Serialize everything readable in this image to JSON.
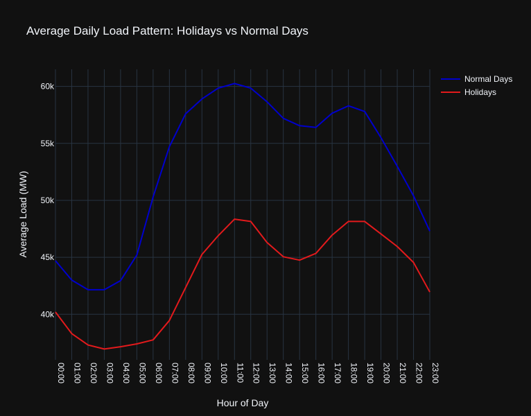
{
  "chart_data": {
    "type": "line",
    "title": "Average Daily Load Pattern: Holidays vs Normal Days",
    "xlabel": "Hour of Day",
    "ylabel": "Average Load (MW)",
    "categories": [
      "00:00",
      "01:00",
      "02:00",
      "03:00",
      "04:00",
      "05:00",
      "06:00",
      "07:00",
      "08:00",
      "09:00",
      "10:00",
      "11:00",
      "12:00",
      "13:00",
      "14:00",
      "15:00",
      "16:00",
      "17:00",
      "18:00",
      "19:00",
      "20:00",
      "21:00",
      "22:00",
      "23:00"
    ],
    "ylim": [
      36000,
      61500
    ],
    "yticks": [
      40000,
      45000,
      50000,
      55000,
      60000
    ],
    "ytick_labels": [
      "40k",
      "45k",
      "50k",
      "55k",
      "60k"
    ],
    "grid": true,
    "legend_position": "top-right",
    "series": [
      {
        "name": "Normal Days",
        "color": "#0000cd",
        "values": [
          44700,
          43000,
          42150,
          42150,
          42950,
          45200,
          50300,
          54700,
          57600,
          58900,
          59850,
          60250,
          59850,
          58650,
          57200,
          56550,
          56400,
          57650,
          58300,
          57800,
          55500,
          53000,
          50400,
          47300
        ]
      },
      {
        "name": "Holidays",
        "color": "#e31a1c",
        "values": [
          40200,
          38300,
          37300,
          36950,
          37150,
          37400,
          37750,
          39450,
          42350,
          45250,
          46900,
          48350,
          48150,
          46300,
          45050,
          44750,
          45350,
          46950,
          48150,
          48150,
          47050,
          45950,
          44550,
          41950
        ]
      }
    ]
  }
}
